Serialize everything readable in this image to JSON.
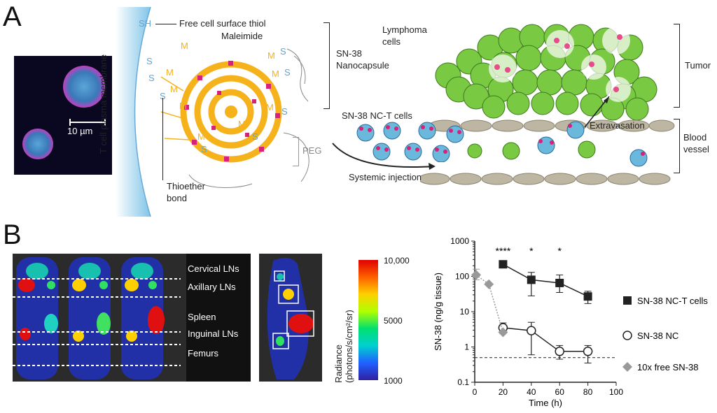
{
  "panel_a": {
    "letter": "A",
    "micrograph": {
      "scale_label": "10 µm"
    },
    "membrane_label": "T cell plasma membrane",
    "labels": {
      "sh": "SH",
      "free_thiol": "Free cell surface thiol",
      "maleimide": "Maleimide",
      "m": "M",
      "s": "S",
      "nanocapsule": [
        "SN-38",
        "Nanocapsule"
      ],
      "peg": "PEG",
      "thioether": [
        "Thioether",
        "bond"
      ],
      "lymphoma": [
        "Lymphoma",
        "cells"
      ],
      "tumor": "Tumor",
      "nct_cells": "SN-38 NC-T cells",
      "extravasation": "Extravasation",
      "blood_vessel": [
        "Blood",
        "vessel"
      ],
      "systemic_injection": "Systemic injection"
    },
    "colors": {
      "gold": "#f5b21a",
      "pink": "#d6227a",
      "cyan": "#6ab8dc",
      "green": "#7ac943",
      "vessel": "#bdb6a2"
    }
  },
  "panel_b": {
    "letter": "B",
    "organ_labels": [
      "Cervical LNs",
      "Axillary LNs",
      "Spleen",
      "Inguinal LNs",
      "Femurs"
    ],
    "colorbar": {
      "title_line1": "Radiance",
      "title_line2": "(photons/s/cm²/sr)",
      "ticks": [
        "10,000",
        "5000",
        "1000"
      ]
    }
  },
  "chart_data": {
    "type": "line",
    "ylabel": "SN-38 (ng/g tissue)",
    "xlabel": "Time (h)",
    "yscale": "log",
    "ylim": [
      0.1,
      1000
    ],
    "xlim": [
      0,
      100
    ],
    "xticks": [
      0,
      20,
      40,
      60,
      80,
      100
    ],
    "yticks": [
      "0.1",
      "1",
      "10",
      "100",
      "1000"
    ],
    "detection_limit": 0.5,
    "series": [
      {
        "name": "SN-38 NC-T cells",
        "marker": "filled-square",
        "x": [
          20,
          40,
          60,
          80
        ],
        "y": [
          220,
          80,
          65,
          27
        ],
        "err_low": [
          220,
          28,
          35,
          17
        ],
        "err_high": [
          220,
          130,
          110,
          38
        ]
      },
      {
        "name": "SN-38 NC",
        "marker": "open-circle",
        "x": [
          20,
          40,
          60,
          80
        ],
        "y": [
          3.5,
          2.9,
          0.75,
          0.75
        ],
        "err_low": [
          2.6,
          0.6,
          0.45,
          0.35
        ],
        "err_high": [
          4.8,
          5.0,
          1.1,
          1.1
        ]
      },
      {
        "name": "10x free SN-38",
        "marker": "gray-diamond",
        "x": [
          1,
          10,
          20
        ],
        "y": [
          110,
          60,
          2.6
        ],
        "err_low": [
          80,
          60,
          2.6
        ],
        "err_high": [
          160,
          60,
          2.6
        ]
      }
    ],
    "annotations": [
      {
        "x": 20,
        "text": "****"
      },
      {
        "x": 40,
        "text": "*"
      },
      {
        "x": 60,
        "text": "*"
      }
    ]
  }
}
